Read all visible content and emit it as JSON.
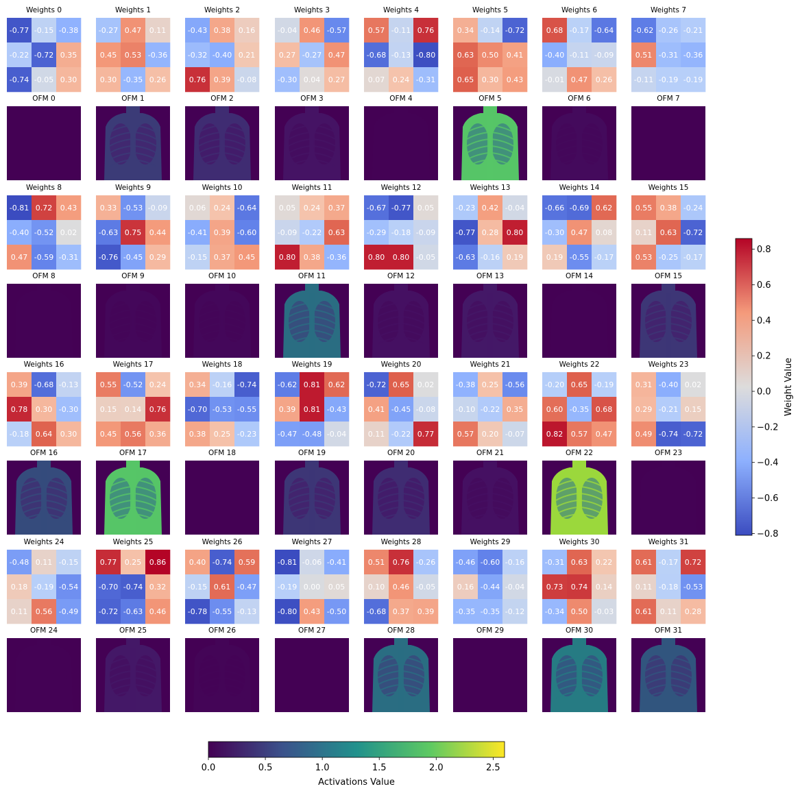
{
  "chart_data": {
    "type": "heatmap",
    "description_titles": {
      "weights_prefix": "Weights",
      "ofm_prefix": "OFM"
    },
    "weights": [
      [
        [
          -0.77,
          -0.15,
          -0.38
        ],
        [
          -0.22,
          -0.72,
          0.35
        ],
        [
          -0.74,
          -0.05,
          0.3
        ]
      ],
      [
        [
          -0.27,
          0.47,
          0.11
        ],
        [
          0.45,
          0.53,
          -0.36
        ],
        [
          0.3,
          -0.35,
          0.26
        ]
      ],
      [
        [
          -0.43,
          0.38,
          0.16
        ],
        [
          -0.32,
          -0.4,
          0.21
        ],
        [
          0.76,
          0.39,
          -0.08
        ]
      ],
      [
        [
          -0.04,
          0.46,
          -0.57
        ],
        [
          0.27,
          -0.27,
          0.47
        ],
        [
          -0.3,
          0.04,
          0.27
        ]
      ],
      [
        [
          0.57,
          -0.11,
          0.76
        ],
        [
          -0.68,
          -0.13,
          -0.8
        ],
        [
          0.07,
          0.24,
          -0.31
        ]
      ],
      [
        [
          0.34,
          -0.14,
          -0.72
        ],
        [
          0.63,
          0.5,
          0.41
        ],
        [
          0.65,
          0.3,
          0.43
        ]
      ],
      [
        [
          0.68,
          -0.17,
          -0.64
        ],
        [
          -0.4,
          -0.11,
          -0.09
        ],
        [
          -0.01,
          0.47,
          0.26
        ]
      ],
      [
        [
          -0.62,
          -0.26,
          -0.21
        ],
        [
          0.51,
          -0.31,
          -0.36
        ],
        [
          -0.11,
          -0.19,
          -0.19
        ]
      ],
      [
        [
          -0.81,
          0.72,
          0.43
        ],
        [
          -0.4,
          -0.52,
          0.02
        ],
        [
          0.47,
          -0.59,
          -0.31
        ]
      ],
      [
        [
          0.33,
          -0.53,
          -0.09
        ],
        [
          -0.63,
          0.75,
          0.44
        ],
        [
          -0.76,
          -0.45,
          0.29
        ]
      ],
      [
        [
          0.06,
          0.24,
          -0.64
        ],
        [
          -0.41,
          0.39,
          -0.6
        ],
        [
          -0.15,
          0.37,
          0.45
        ]
      ],
      [
        [
          0.05,
          0.24,
          0.37
        ],
        [
          -0.09,
          -0.22,
          0.63
        ],
        [
          0.8,
          0.38,
          -0.36
        ]
      ],
      [
        [
          -0.67,
          -0.77,
          0.05
        ],
        [
          -0.29,
          -0.18,
          -0.09
        ],
        [
          0.8,
          0.8,
          -0.05
        ]
      ],
      [
        [
          -0.23,
          0.42,
          -0.04
        ],
        [
          -0.77,
          0.28,
          0.8
        ],
        [
          -0.63,
          -0.16,
          0.19
        ]
      ],
      [
        [
          -0.66,
          -0.69,
          0.62
        ],
        [
          -0.3,
          0.47,
          0.08
        ],
        [
          0.19,
          -0.55,
          -0.17
        ]
      ],
      [
        [
          0.55,
          0.38,
          -0.24
        ],
        [
          0.11,
          0.63,
          -0.72
        ],
        [
          0.53,
          -0.25,
          -0.17
        ]
      ],
      [
        [
          0.39,
          -0.68,
          -0.13
        ],
        [
          0.78,
          0.3,
          -0.3
        ],
        [
          -0.18,
          0.64,
          0.3
        ]
      ],
      [
        [
          0.55,
          -0.52,
          0.24
        ],
        [
          0.15,
          0.14,
          0.76
        ],
        [
          0.45,
          0.56,
          0.36
        ]
      ],
      [
        [
          0.34,
          -0.16,
          -0.74
        ],
        [
          -0.7,
          -0.53,
          -0.55
        ],
        [
          0.38,
          0.25,
          -0.23
        ]
      ],
      [
        [
          -0.62,
          0.81,
          0.62
        ],
        [
          0.39,
          0.81,
          -0.43
        ],
        [
          -0.47,
          -0.48,
          -0.04
        ]
      ],
      [
        [
          -0.72,
          0.65,
          0.02
        ],
        [
          0.41,
          -0.45,
          -0.08
        ],
        [
          0.11,
          -0.22,
          0.77
        ]
      ],
      [
        [
          -0.38,
          0.25,
          -0.56
        ],
        [
          -0.1,
          -0.22,
          0.35
        ],
        [
          0.57,
          0.2,
          -0.07
        ]
      ],
      [
        [
          -0.2,
          0.65,
          -0.19
        ],
        [
          0.6,
          -0.35,
          0.68
        ],
        [
          0.82,
          0.57,
          0.47
        ]
      ],
      [
        [
          0.31,
          -0.4,
          0.02
        ],
        [
          0.29,
          -0.21,
          0.15
        ],
        [
          0.49,
          -0.74,
          -0.72
        ]
      ],
      [
        [
          -0.48,
          0.11,
          -0.15
        ],
        [
          0.18,
          -0.19,
          -0.54
        ],
        [
          0.11,
          0.56,
          -0.49
        ]
      ],
      [
        [
          0.77,
          0.25,
          0.86
        ],
        [
          -0.7,
          -0.74,
          0.32
        ],
        [
          -0.72,
          -0.63,
          0.46
        ]
      ],
      [
        [
          0.4,
          -0.74,
          0.59
        ],
        [
          -0.15,
          0.61,
          -0.47
        ],
        [
          -0.78,
          -0.55,
          -0.13
        ]
      ],
      [
        [
          -0.81,
          -0.06,
          -0.41
        ],
        [
          -0.19,
          -0.0,
          0.05
        ],
        [
          -0.8,
          0.43,
          -0.5
        ]
      ],
      [
        [
          0.51,
          0.76,
          -0.26
        ],
        [
          0.1,
          0.46,
          -0.05
        ],
        [
          -0.68,
          0.37,
          0.39
        ]
      ],
      [
        [
          -0.46,
          -0.6,
          -0.16
        ],
        [
          0.16,
          -0.44,
          -0.04
        ],
        [
          -0.35,
          -0.35,
          -0.12
        ]
      ],
      [
        [
          -0.31,
          0.63,
          0.22
        ],
        [
          0.73,
          0.74,
          0.14
        ],
        [
          -0.34,
          0.5,
          -0.03
        ]
      ],
      [
        [
          0.61,
          -0.17,
          0.72
        ],
        [
          0.11,
          -0.18,
          -0.53
        ],
        [
          0.61,
          0.11,
          0.28
        ]
      ]
    ],
    "ofm_intensity": [
      0.02,
      0.75,
      0.6,
      0.35,
      0.05,
      1.9,
      0.2,
      0.01,
      0.05,
      0.15,
      0.15,
      1.2,
      0.3,
      0.4,
      0.05,
      0.7,
      0.9,
      1.9,
      0.0,
      0.7,
      0.6,
      0.3,
      2.2,
      0.05,
      0.05,
      0.4,
      0.1,
      0.01,
      1.2,
      0.01,
      1.3,
      1.0
    ],
    "weights_colorbar": {
      "label": "Weight Value",
      "range": [
        -0.81,
        0.86
      ],
      "ticks": [
        0.8,
        0.6,
        0.4,
        0.2,
        0.0,
        -0.2,
        -0.4,
        -0.6,
        -0.8
      ],
      "tick_labels": [
        "0.8",
        "0.6",
        "0.4",
        "0.2",
        "0.0",
        "−0.2",
        "−0.4",
        "−0.6",
        "−0.8"
      ],
      "colormap": "coolwarm"
    },
    "activations_colorbar": {
      "label": "Activations Value",
      "range": [
        0.0,
        2.6
      ],
      "ticks": [
        0.0,
        0.5,
        1.0,
        1.5,
        2.0,
        2.5
      ],
      "tick_labels": [
        "0.0",
        "0.5",
        "1.0",
        "1.5",
        "2.0",
        "2.5"
      ],
      "colormap": "viridis"
    }
  }
}
